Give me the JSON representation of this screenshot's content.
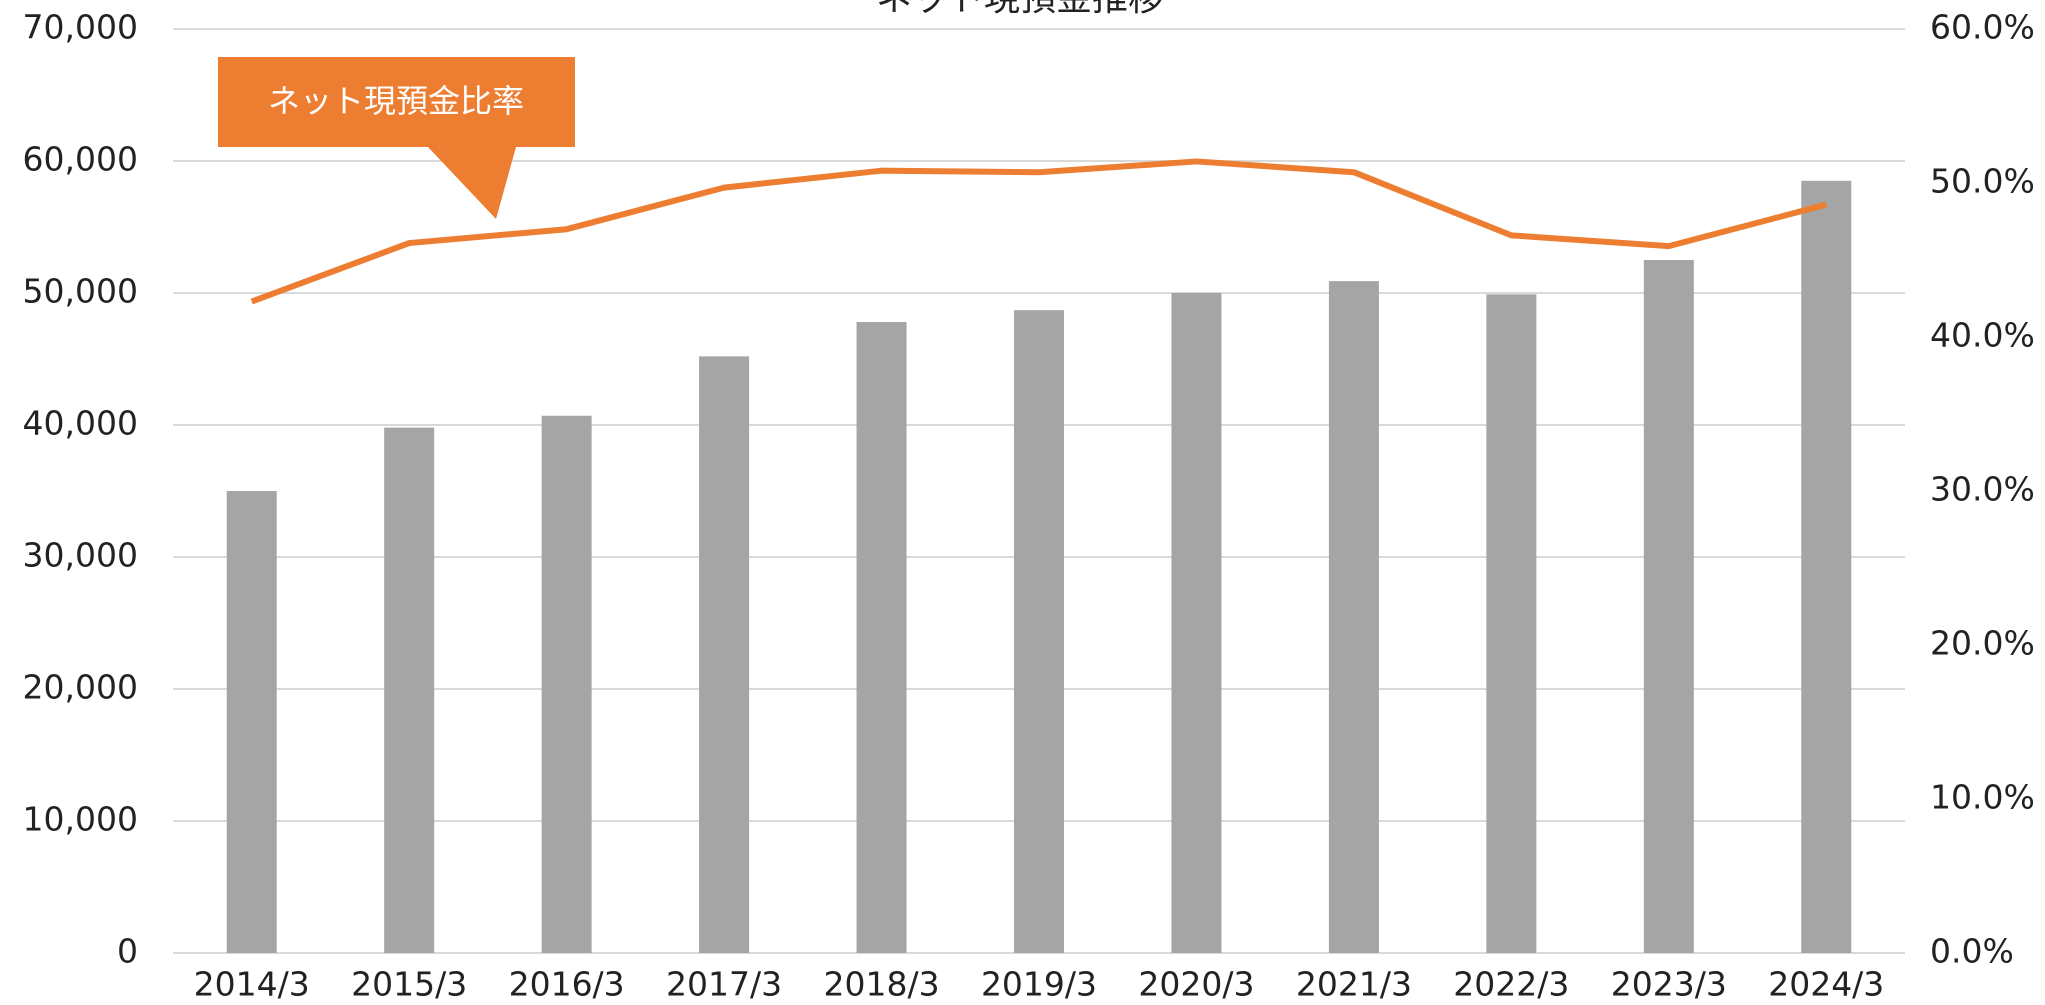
{
  "chart_data": {
    "type": "bar-line",
    "title": "ネット現預金推移",
    "annotations": [
      "ネット現預金比率"
    ],
    "categories": [
      "2014/3",
      "2015/3",
      "2016/3",
      "2017/3",
      "2018/3",
      "2019/3",
      "2020/3",
      "2021/3",
      "2022/3",
      "2023/3",
      "2024/3"
    ],
    "series": [
      {
        "type": "bar",
        "color": "#a5a5a5",
        "values": [
          35000,
          39800,
          40700,
          45200,
          47800,
          48700,
          50000,
          50900,
          49900,
          52500,
          58500
        ]
      },
      {
        "type": "line",
        "axis": "y2",
        "color": "#ed7d31",
        "values": [
          42.3,
          46.1,
          47.0,
          49.7,
          50.8,
          50.7,
          51.4,
          50.7,
          46.6,
          45.9,
          48.6
        ]
      }
    ],
    "ylim": [
      0,
      70000
    ],
    "yticks": [
      0,
      {
        "value": 10000,
        "label": "10,000"
      },
      {
        "value": 20000,
        "label": "20,000"
      },
      {
        "value": 30000,
        "label": "30,000"
      },
      {
        "value": 40000,
        "label": "40,000"
      },
      {
        "value": 50000,
        "label": "50,000"
      },
      {
        "value": 60000,
        "label": "60,000"
      },
      {
        "value": 70000,
        "label": "70,000"
      }
    ],
    "y2lim": [
      0,
      60
    ],
    "y2ticks": [
      {
        "value": 0,
        "label": "0.0%"
      },
      {
        "value": 10,
        "label": "10.0%"
      },
      {
        "value": 20,
        "label": "20.0%"
      },
      {
        "value": 30,
        "label": "30.0%"
      },
      {
        "value": 40,
        "label": "40.0%"
      },
      {
        "value": 50,
        "label": "50.0%"
      },
      {
        "value": 60,
        "label": "60.0%"
      }
    ],
    "grid": true
  }
}
